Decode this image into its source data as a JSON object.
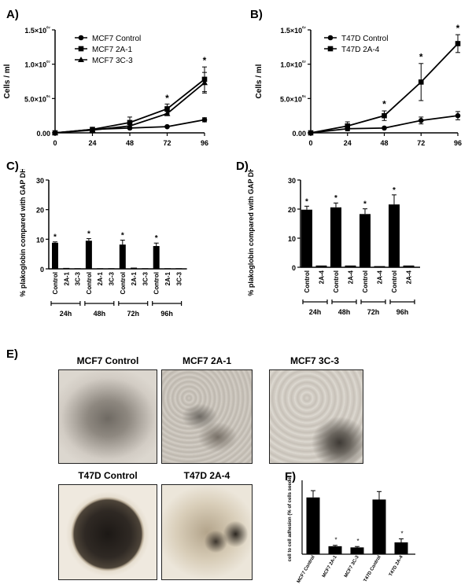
{
  "labels": {
    "A": "A)",
    "B": "B)",
    "C": "C)",
    "D": "D)",
    "E": "E)",
    "F": "F)"
  },
  "photos": {
    "mcf7_control": "MCF7 Control",
    "mcf7_2a1": "MCF7 2A-1",
    "mcf7_3c3": "MCF7 3C-3",
    "t47d_control": "T47D Control",
    "t47d_2a4": "T47D 2A-4"
  },
  "chart_data": [
    {
      "id": "A",
      "type": "line",
      "ylabel": "Cells / ml",
      "x": [
        0,
        24,
        48,
        72,
        96
      ],
      "ylim": [
        0,
        15000000
      ],
      "yticks": [
        {
          "v": 0,
          "t": "0.00"
        },
        {
          "v": 5000000,
          "t": "5.0×10⁰⁶"
        },
        {
          "v": 10000000,
          "t": "1.0×10⁰⁷"
        },
        {
          "v": 15000000,
          "t": "1.5×10⁰⁷"
        }
      ],
      "marker_y": [
        0,
        5000000,
        10000000,
        15000000
      ],
      "series": [
        {
          "name": "MCF7 Control",
          "marker": "circle",
          "values": [
            0,
            500000,
            700000,
            900000,
            1900000
          ],
          "errors": [
            0,
            100000,
            150000,
            100000,
            300000
          ]
        },
        {
          "name": "MCF7 2A-1",
          "marker": "square",
          "values": [
            0,
            500000,
            1500000,
            3500000,
            7800000
          ],
          "errors": [
            0,
            200000,
            800000,
            700000,
            1800000
          ]
        },
        {
          "name": "MCF7 3C-3",
          "marker": "triangle",
          "values": [
            0,
            400000,
            1000000,
            2800000,
            7300000
          ],
          "errors": [
            0,
            200000,
            400000,
            300000,
            1500000
          ]
        }
      ],
      "stars": [
        {
          "x": 72,
          "y": 4600000
        },
        {
          "x": 96,
          "y": 10100000
        }
      ],
      "star_text": "*"
    },
    {
      "id": "B",
      "type": "line",
      "ylabel": "Cells / ml",
      "x": [
        0,
        24,
        48,
        72,
        96
      ],
      "ylim": [
        0,
        15000000
      ],
      "yticks": [
        {
          "v": 0,
          "t": "0.00"
        },
        {
          "v": 5000000,
          "t": "5.0×10⁰⁶"
        },
        {
          "v": 10000000,
          "t": "1.0×10⁰⁷"
        },
        {
          "v": 15000000,
          "t": "1.5×10⁰⁷"
        }
      ],
      "series": [
        {
          "name": "T47D Control",
          "marker": "circle",
          "values": [
            0,
            600000,
            700000,
            1800000,
            2500000
          ],
          "errors": [
            0,
            300000,
            100000,
            500000,
            600000
          ]
        },
        {
          "name": "T47D 2A-4",
          "marker": "square",
          "values": [
            0,
            1000000,
            2500000,
            7400000,
            13000000
          ],
          "errors": [
            0,
            600000,
            700000,
            2700000,
            1300000
          ]
        }
      ],
      "stars": [
        {
          "x": 48,
          "y": 3700000
        },
        {
          "x": 72,
          "y": 10600000
        },
        {
          "x": 96,
          "y": 14800000
        }
      ],
      "star_text": "*"
    },
    {
      "id": "C",
      "type": "bar",
      "ylabel": "% plakoglobin compared with GAP DH",
      "ylim": [
        0,
        30
      ],
      "yticks": [
        0,
        10,
        20,
        30
      ],
      "categories": [
        "Control",
        "2A-1",
        "3C-3",
        "Control",
        "2A-1",
        "3C-3",
        "Control",
        "2A-1",
        "3C-3",
        "Control",
        "2A-1",
        "3C-3"
      ],
      "values": [
        8.8,
        0.3,
        0.2,
        9.5,
        0.2,
        0.2,
        8.2,
        0.4,
        0.2,
        7.7,
        0.2,
        0.2
      ],
      "errors": [
        0.3,
        0,
        0,
        0.7,
        0,
        0,
        1.5,
        0,
        0,
        1.0,
        0,
        0
      ],
      "stars": [
        0,
        3,
        6,
        9
      ],
      "star_text": "*",
      "groups": [
        "24h",
        "48h",
        "72h",
        "96h"
      ]
    },
    {
      "id": "D",
      "type": "bar",
      "ylabel": "% plakoglobin compared with GAP DH",
      "ylim": [
        0,
        30
      ],
      "yticks": [
        0,
        10,
        20,
        30
      ],
      "categories": [
        "Control",
        "2A-4",
        "Control",
        "2A-4",
        "Control",
        "2A-4",
        "Control",
        "2A-4"
      ],
      "values": [
        19.8,
        0.6,
        20.6,
        0.6,
        18.3,
        0.4,
        21.6,
        0.6
      ],
      "errors": [
        1.2,
        0,
        1.5,
        0,
        1.8,
        0,
        3.3,
        0
      ],
      "stars": [
        0,
        2,
        4,
        6
      ],
      "star_text": "*",
      "groups": [
        "24h",
        "48h",
        "72h",
        "96h"
      ]
    },
    {
      "id": "F",
      "type": "bar",
      "ylabel": "cell to cell adhesion (% of cells seeded)",
      "ylim": [
        0,
        25
      ],
      "categories": [
        "MCF7 Control",
        "MCF7 2A-1",
        "MCF7 3C-3",
        "T47D Control",
        "T47D 2A-4"
      ],
      "values": [
        19.2,
        2.7,
        2.3,
        18.5,
        4.0
      ],
      "errors": [
        2.3,
        0.3,
        0.3,
        2.7,
        1.2
      ],
      "stars": [
        1,
        2,
        4
      ],
      "star_text": "*"
    }
  ]
}
